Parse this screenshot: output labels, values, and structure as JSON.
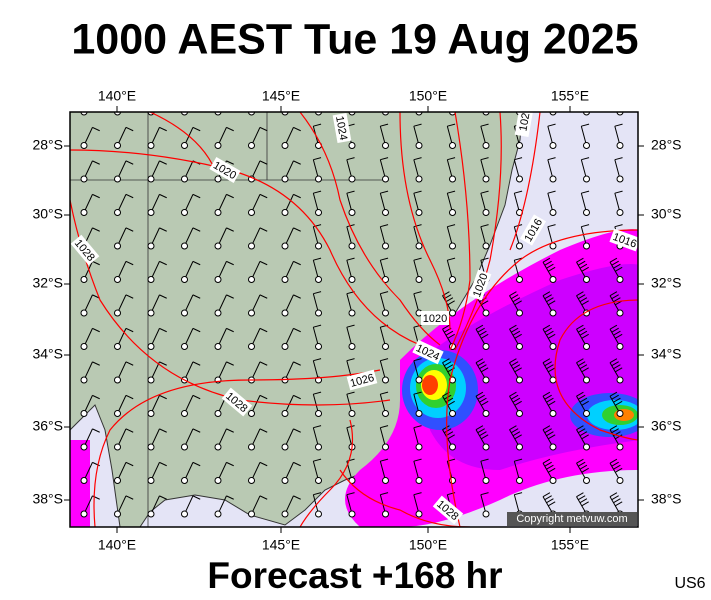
{
  "title": "1000 AEST Tue 19 Aug 2025",
  "footer": "Forecast +168 hr",
  "code": "US6",
  "copyright": "Copyright metvuw.com",
  "lon_labels": [
    "140°E",
    "145°E",
    "150°E",
    "155°E"
  ],
  "lat_labels": [
    "28°S",
    "30°S",
    "32°S",
    "34°S",
    "36°S",
    "38°S"
  ],
  "isobar_labels": [
    "102",
    "1024",
    "1020",
    "1028",
    "1020",
    "1016",
    "1016",
    "1020",
    "1024",
    "1026",
    "1028",
    "1028"
  ]
}
